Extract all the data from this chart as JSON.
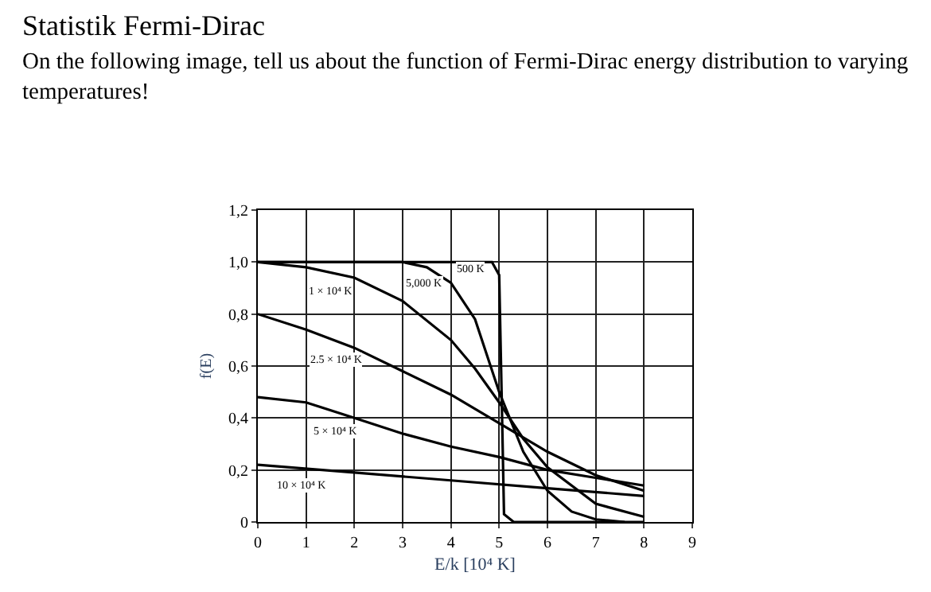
{
  "chart_data": {
    "type": "line",
    "title": "Statistik Fermi-Dirac",
    "subtitle": "On the following image, tell us about the function of Fermi-Dirac energy distribution to varying temperatures!",
    "xlabel": "E/k [10⁴ K]",
    "ylabel": "f(E)",
    "xlim": [
      0,
      9
    ],
    "xticks": [
      0,
      1,
      2,
      3,
      4,
      5,
      6,
      7,
      8,
      9
    ],
    "ylim": [
      0,
      1.2
    ],
    "yticks": [
      {
        "value": 0,
        "label": "0"
      },
      {
        "value": 0.2,
        "label": "0,2"
      },
      {
        "value": 0.4,
        "label": "0,4"
      },
      {
        "value": 0.6,
        "label": "0,6"
      },
      {
        "value": 0.8,
        "label": "0,8"
      },
      {
        "value": 1.0,
        "label": "1,0"
      },
      {
        "value": 1.2,
        "label": "1,2"
      }
    ],
    "grid": true,
    "legend": false,
    "marker": "none",
    "line_style": "solid",
    "series": [
      {
        "name": "500 K",
        "color": "#000000",
        "x": [
          0,
          4.85,
          5.0,
          5.05,
          5.1,
          5.3,
          8
        ],
        "values": [
          1.0,
          1.0,
          0.95,
          0.5,
          0.03,
          0.0,
          0.0
        ]
      },
      {
        "name": "5,000 K",
        "color": "#000000",
        "x": [
          0,
          3,
          3.5,
          4,
          4.5,
          5,
          5.5,
          6,
          6.5,
          7,
          7.6
        ],
        "values": [
          1.0,
          1.0,
          0.98,
          0.92,
          0.78,
          0.5,
          0.27,
          0.12,
          0.04,
          0.01,
          0.0
        ]
      },
      {
        "name": "1 × 10⁴ K",
        "color": "#000000",
        "x": [
          0,
          1,
          2,
          3,
          4,
          4.5,
          5,
          5.5,
          6,
          7,
          8
        ],
        "values": [
          1.0,
          0.98,
          0.94,
          0.85,
          0.7,
          0.59,
          0.46,
          0.32,
          0.21,
          0.07,
          0.02
        ]
      },
      {
        "name": "2.5 × 10⁴ K",
        "color": "#000000",
        "x": [
          0,
          1,
          2,
          3,
          4,
          5,
          6,
          7,
          8
        ],
        "values": [
          0.8,
          0.74,
          0.67,
          0.58,
          0.49,
          0.38,
          0.27,
          0.18,
          0.12
        ]
      },
      {
        "name": "5 × 10⁴ K",
        "color": "#000000",
        "x": [
          0,
          1,
          2,
          3,
          4,
          5,
          6,
          7,
          8
        ],
        "values": [
          0.48,
          0.46,
          0.4,
          0.34,
          0.29,
          0.25,
          0.2,
          0.17,
          0.14
        ]
      },
      {
        "name": "10 × 10⁴ K",
        "color": "#000000",
        "x": [
          0,
          2,
          4,
          6,
          8
        ],
        "values": [
          0.22,
          0.19,
          0.16,
          0.13,
          0.1
        ]
      }
    ]
  }
}
